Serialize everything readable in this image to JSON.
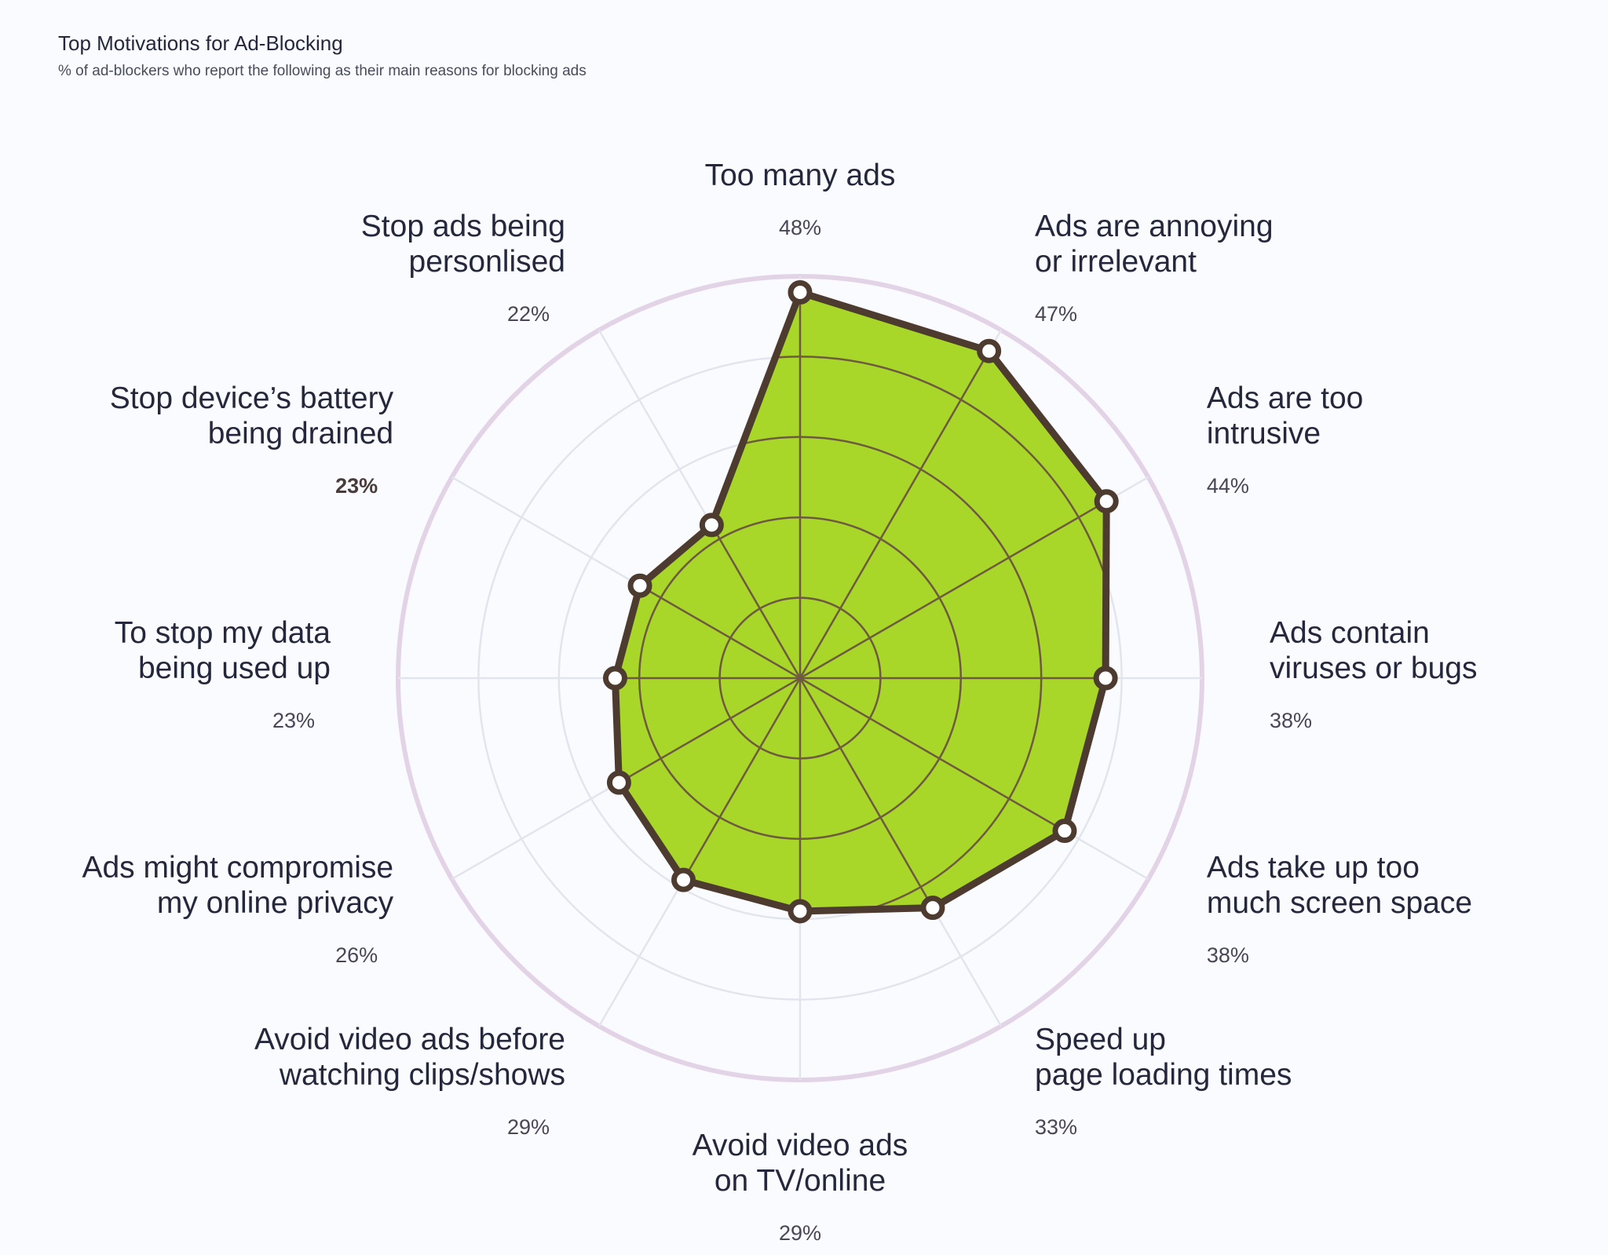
{
  "header": {
    "title": "Top Motivations for Ad-Blocking",
    "subtitle": "% of ad-blockers who report the following as their main reasons for blocking ads"
  },
  "colors": {
    "fill": "#a8d629",
    "stroke": "#4e3b30",
    "outer_ring": "#e2d4e6",
    "grid": "#e3e5ee",
    "inner_grid": "#6e5a40",
    "marker_fill": "#ffffff",
    "background": "#fafbfe"
  },
  "chart_data": {
    "type": "radar",
    "title": "Top Motivations for Ad-Blocking",
    "subtitle": "% of ad-blockers who report the following as their main reasons for blocking ads",
    "rlim": [
      0,
      50
    ],
    "categories": [
      {
        "lines": [
          "Too many ads"
        ],
        "pct": "48%",
        "value": 48
      },
      {
        "lines": [
          "Ads are annoying",
          "or irrelevant"
        ],
        "pct": "47%",
        "value": 47
      },
      {
        "lines": [
          "Ads are too",
          "intrusive"
        ],
        "pct": "44%",
        "value": 44
      },
      {
        "lines": [
          "Ads contain",
          "viruses or bugs"
        ],
        "pct": "38%",
        "value": 38
      },
      {
        "lines": [
          "Ads take up too",
          "much screen space"
        ],
        "pct": "38%",
        "value": 38
      },
      {
        "lines": [
          "Speed up",
          "page loading times"
        ],
        "pct": "33%",
        "value": 33
      },
      {
        "lines": [
          "Avoid video ads",
          "on TV/online"
        ],
        "pct": "29%",
        "value": 29
      },
      {
        "lines": [
          "Avoid video ads before",
          "watching clips/shows"
        ],
        "pct": "29%",
        "value": 29
      },
      {
        "lines": [
          "Ads might compromise",
          "my online privacy"
        ],
        "pct": "26%",
        "value": 26
      },
      {
        "lines": [
          "To stop my data",
          "being used up"
        ],
        "pct": "23%",
        "value": 23
      },
      {
        "lines": [
          "Stop device’s battery",
          "being drained"
        ],
        "pct": "23%",
        "value": 23,
        "bold": true
      },
      {
        "lines": [
          "Stop ads being",
          "personlised"
        ],
        "pct": "22%",
        "value": 22
      }
    ]
  }
}
